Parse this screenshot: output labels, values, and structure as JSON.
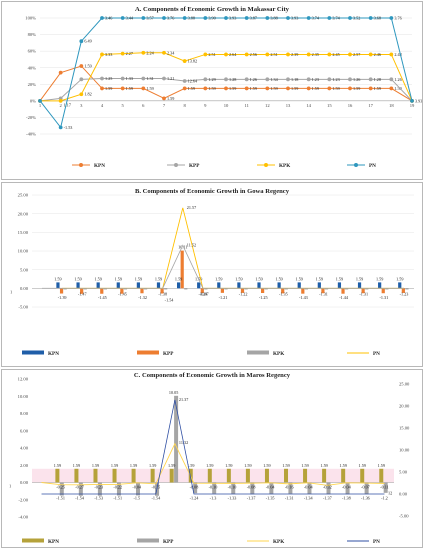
{
  "chart_data": [
    {
      "type": "line",
      "title": "A. Components of Economic Growth in Makassar City",
      "x": [
        1,
        2,
        3,
        4,
        5,
        6,
        7,
        8,
        9,
        10,
        11,
        12,
        13,
        14,
        15,
        16,
        17,
        18,
        19
      ],
      "yticks": [
        "100%",
        "80%",
        "60%",
        "40%",
        "20%",
        "0%",
        "-20%",
        "-40%"
      ],
      "ylim": [
        -40,
        100
      ],
      "series": [
        {
          "name": "KPN",
          "color": "#ed7d31",
          "values": [
            0,
            34,
            42,
            15,
            15,
            15,
            3,
            15,
            15,
            15,
            15,
            15,
            15,
            15,
            15,
            15,
            15,
            15,
            0
          ],
          "labels": [
            "",
            "",
            "1.59",
            "1.59",
            "1.59",
            "1.59",
            "1.59",
            "1.59",
            "1.59",
            "1.59",
            "1.59",
            "1.59",
            "1.59",
            "1.59",
            "1.59",
            "1.59",
            "1.59",
            "1.59",
            ""
          ]
        },
        {
          "name": "KPP",
          "color": "#a5a5a5",
          "values": [
            0,
            3,
            26,
            27,
            27,
            27,
            27,
            24,
            26,
            26,
            26,
            26,
            26,
            26,
            26,
            26,
            26,
            26,
            0
          ],
          "labels": [
            "",
            "",
            "",
            "1.25",
            "1.33",
            "1.31",
            "1.21",
            "12.64",
            "1.29",
            "1.28",
            "1.26",
            "1.34",
            "1.18",
            "1.23",
            "1.23",
            "1.26",
            "1.28",
            "1.26",
            ""
          ]
        },
        {
          "name": "KPK",
          "color": "#ffc000",
          "values": [
            0,
            0,
            8,
            56,
            57,
            58,
            58,
            48,
            56,
            56,
            56,
            56,
            56,
            56,
            56,
            56,
            56,
            56,
            0
          ],
          "labels": [
            "",
            "",
            "1.82",
            "3.33",
            "2.27",
            "2.24",
            "2.34",
            "13.82",
            "2.51",
            "2.64",
            "2.56",
            "2.51",
            "2.39",
            "2.35",
            "2.45",
            "2.57",
            "2.46",
            "2.48",
            ""
          ]
        },
        {
          "name": "PN",
          "color": "#2e97be",
          "values": [
            0,
            -32,
            72,
            100,
            100,
            100,
            100,
            100,
            100,
            100,
            100,
            100,
            100,
            100,
            100,
            100,
            100,
            100,
            0
          ],
          "labels": [
            "",
            "-1.53",
            "6.49",
            "3.46",
            "3.44",
            "3.57",
            "3.76",
            "3.88",
            "3.90",
            "3.93",
            "3.87",
            "3.88",
            "3.93",
            "3.74",
            "3.74",
            "3.52",
            "3.68",
            "3.76",
            "3.93"
          ]
        }
      ],
      "extra_labels": [
        "1.17"
      ]
    },
    {
      "type": "bar",
      "title": "B. Components of Economic Growth in Gowa Regency",
      "categories": [
        "1",
        "2",
        "3",
        "4",
        "5",
        "6",
        "7",
        "8",
        "9",
        "10",
        "11",
        "12",
        "13",
        "14",
        "15",
        "16",
        "17",
        "18",
        "19"
      ],
      "yticks": [
        "25.00",
        "20.00",
        "15.00",
        "10.00",
        "5.00",
        "0.00",
        "-5.00"
      ],
      "ylim": [
        -5,
        25
      ],
      "series": [
        {
          "name": "KPN",
          "color": "#1f5ea8",
          "values": [
            0,
            1.59,
            1.59,
            1.59,
            1.59,
            1.59,
            1.59,
            1.59,
            1.59,
            1.59,
            1.59,
            1.59,
            1.59,
            1.59,
            1.59,
            1.59,
            1.59,
            1.59,
            1.59
          ]
        },
        {
          "name": "KPP",
          "color": "#ed7d31",
          "values": [
            0,
            -1.39,
            -1.47,
            -1.45,
            -1.45,
            -1.32,
            -1.38,
            10.11,
            -1.24,
            -1.21,
            -1.22,
            -1.25,
            -1.35,
            -1.43,
            -1.31,
            -1.44,
            -1.31,
            -1.31,
            -1.23
          ]
        },
        {
          "name": "KPK",
          "color": "#a5a5a5",
          "values": [
            0,
            -0.3,
            -0.3,
            -0.3,
            -0.3,
            -0.3,
            -0.3,
            -0.3,
            -0.3,
            -0.3,
            -0.3,
            -0.3,
            -0.3,
            -0.3,
            -0.3,
            -0.3,
            -0.3,
            -0.3,
            -0.3
          ]
        },
        {
          "name": "PN",
          "color": "#ffc000",
          "values": [
            0,
            0,
            0,
            0,
            0,
            0,
            0,
            21.57,
            0,
            0,
            0,
            0,
            0,
            0,
            0,
            0,
            0,
            0,
            0
          ]
        }
      ],
      "kpn_labels": [
        "",
        "1.59",
        "1.59",
        "1.59",
        "1.59",
        "1.59",
        "1.59",
        "1.59",
        "1.59",
        "1.59",
        "1.59",
        "1.59",
        "1.59",
        "1.59",
        "1.59",
        "1.59",
        "1.59",
        "1.59",
        "1.59"
      ],
      "kpp_labels": [
        "",
        "-1.39",
        "-1.47",
        "-1.45",
        "-1.45",
        "-1.32",
        "-1.38",
        "10.11",
        "-1.24",
        "-1.21",
        "-1.22",
        "-1.25",
        "-1.35",
        "-1.43",
        "-1.31",
        "-1.44",
        "-1.31",
        "-1.31",
        "-1.23"
      ],
      "extra_labels": [
        "21.57",
        "11.52",
        "-1.54",
        "-0.87"
      ]
    },
    {
      "type": "bar",
      "title": "C. Components of Economic Growth in Maros Regency",
      "categories": [
        "1",
        "2",
        "3",
        "4",
        "5",
        "6",
        "7",
        "8",
        "9",
        "10",
        "11",
        "12",
        "13",
        "14",
        "15",
        "16",
        "17",
        "18",
        "19"
      ],
      "yticks_left": [
        "12.00",
        "10.00",
        "8.00",
        "6.00",
        "4.00",
        "2.00",
        "0.00",
        "-2.00",
        "-4.00"
      ],
      "yticks_right": [
        "25.00",
        "20.00",
        "15.00",
        "10.00",
        "5.00",
        "0.00",
        "-5.00"
      ],
      "ylim": [
        -4,
        12
      ],
      "series": [
        {
          "name": "KPN",
          "color": "#b5a23a",
          "values": [
            0,
            1.59,
            1.59,
            1.59,
            1.59,
            1.59,
            1.59,
            1.59,
            1.59,
            1.59,
            1.59,
            1.59,
            1.59,
            1.59,
            1.59,
            1.59,
            1.59,
            1.59,
            1.59
          ]
        },
        {
          "name": "KPP",
          "color": "#a5a5a5",
          "values": [
            0,
            -1.51,
            -1.54,
            -1.53,
            -1.51,
            -1.5,
            -1.54,
            10.05,
            -1.24,
            -1.3,
            -1.33,
            -1.37,
            -1.35,
            -1.31,
            -1.34,
            -1.37,
            -1.38,
            -1.36,
            -1.2
          ]
        },
        {
          "name": "KPK",
          "color": "#ffd54f",
          "values": [
            0,
            -0.25,
            -0.27,
            -0.23,
            -0.22,
            -0.04,
            -0.15,
            4.5,
            -0.08,
            -0.1,
            -0.1,
            -0.08,
            -0.04,
            -0.16,
            -0.04,
            -0.32,
            -0.04,
            -0.07,
            -0.11
          ]
        },
        {
          "name": "PN",
          "color": "#2f4fa3",
          "values": [
            0,
            0,
            0,
            0,
            0,
            0,
            0,
            21.37,
            0,
            0,
            0,
            0,
            0,
            0,
            0,
            0,
            0,
            0,
            0
          ]
        }
      ],
      "kpn_labels": [
        "",
        "1.59",
        "1.59",
        "1.59",
        "1.59",
        "1.59",
        "1.59",
        "1.59",
        "1.59",
        "1.59",
        "1.59",
        "1.59",
        "1.59",
        "1.59",
        "1.59",
        "1.59",
        "1.59",
        "1.59",
        "1.59"
      ],
      "kpk_labels": [
        "",
        "-0.25",
        "-0.27",
        "-0.23",
        "-0.22",
        "-0.04",
        "-0.15",
        "",
        "-0.08",
        "-0.10",
        "-0.10",
        "-0.08",
        "-0.04",
        "-0.16",
        "-0.04",
        "-0.32",
        "-0.04",
        "-0.07",
        "-0.11"
      ],
      "extra_labels": [
        "10.05",
        "21.37",
        "11.32",
        "12"
      ]
    }
  ]
}
